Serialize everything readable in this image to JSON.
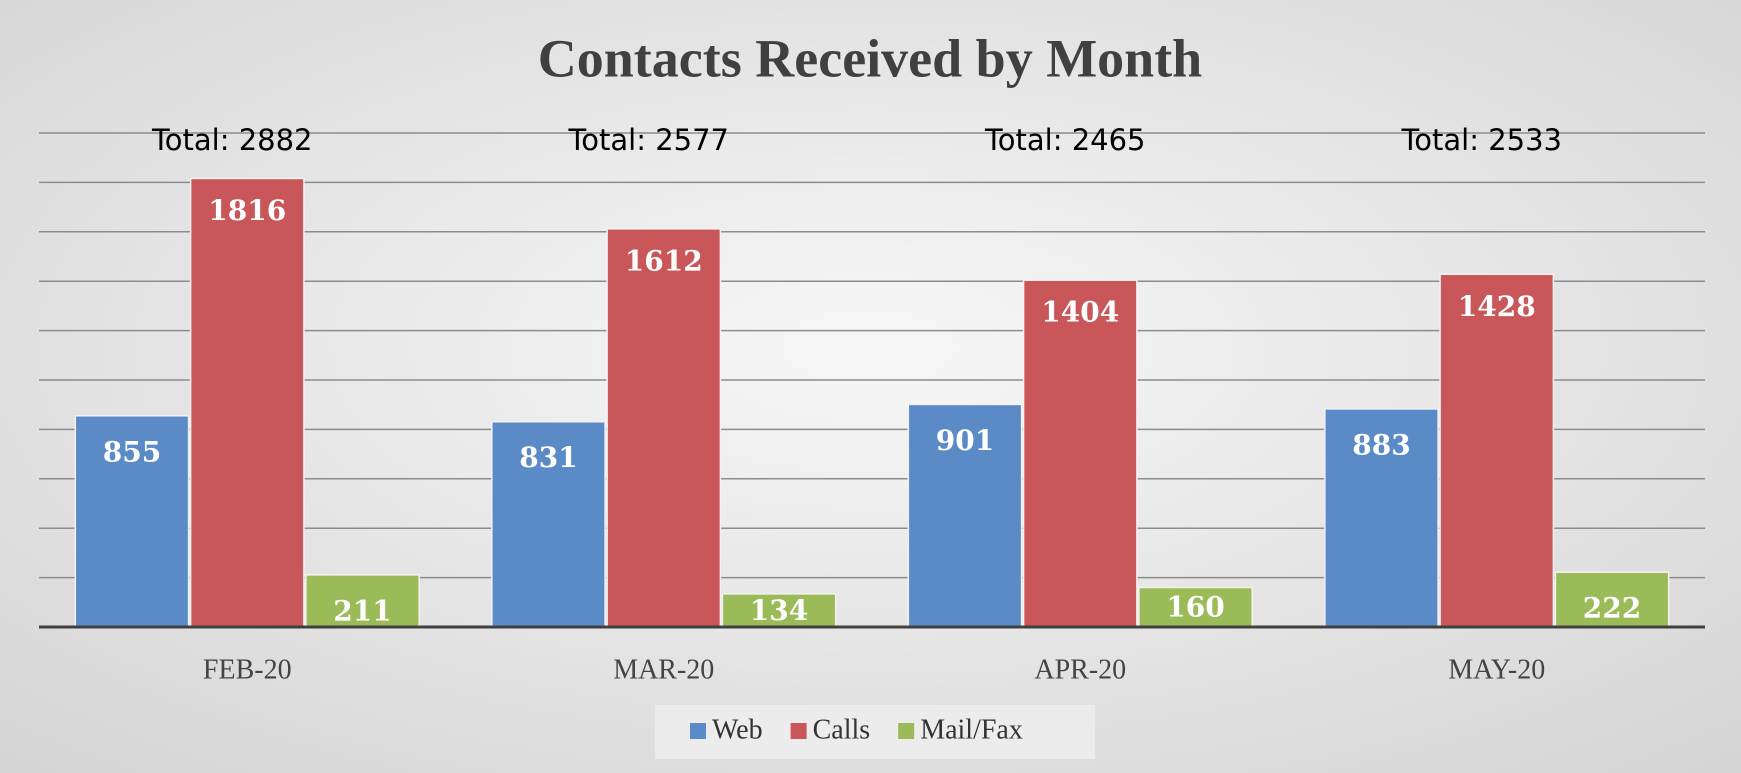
{
  "chart_data": {
    "type": "bar",
    "title": "Contacts Received by Month",
    "categories": [
      "FEB-20",
      "MAR-20",
      "APR-20",
      "MAY-20"
    ],
    "series": [
      {
        "name": "Web",
        "color": "#5b8bc7",
        "values": [
          855,
          831,
          901,
          883
        ]
      },
      {
        "name": "Calls",
        "color": "#c9575a",
        "values": [
          1816,
          1612,
          1404,
          1428
        ]
      },
      {
        "name": "Mail/Fax",
        "color": "#9bbb59",
        "values": [
          211,
          134,
          160,
          222
        ]
      }
    ],
    "annotations": [
      "Total: 2882",
      "Total: 2577",
      "Total: 2465",
      "Total: 2533"
    ],
    "ylim": [
      0,
      2000
    ],
    "yticks": [
      0,
      200,
      400,
      600,
      800,
      1000,
      1200,
      1400,
      1600,
      1800,
      2000
    ],
    "y_tick_labels": false,
    "grid": true,
    "legend": "bottom"
  }
}
